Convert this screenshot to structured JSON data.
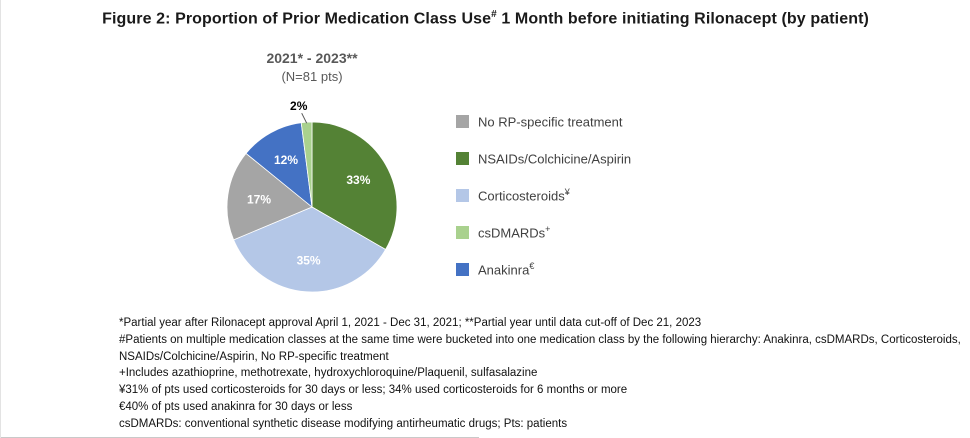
{
  "figure": {
    "title_pre": "Figure 2: Proportion of Prior Medication Class Use",
    "title_sup": "#",
    "title_post": " 1 Month before initiating Rilonacept (by patient)"
  },
  "chart_data": {
    "type": "pie",
    "title": "2021* - 2023**",
    "subtitle": "(N=81 pts)",
    "start_angle_deg": -90,
    "direction": "clockwise",
    "legend_position": "right",
    "series": [
      {
        "name": "NSAIDs/Colchicine/Aspirin",
        "value": 33,
        "label": "33%",
        "color": "#548235",
        "label_inside": true
      },
      {
        "name": "Corticosteroids",
        "value": 35,
        "label": "35%",
        "color": "#b4c7e7",
        "label_inside": true
      },
      {
        "name": "No RP-specific treatment",
        "value": 17,
        "label": "17%",
        "color": "#a5a5a5",
        "label_inside": true
      },
      {
        "name": "Anakinra",
        "value": 12,
        "label": "12%",
        "color": "#4472c4",
        "label_inside": true
      },
      {
        "name": "csDMARDs",
        "value": 2,
        "label": "2%",
        "color": "#a9d18e",
        "label_inside": false
      }
    ]
  },
  "legend": {
    "items": [
      {
        "label": "No RP-specific treatment",
        "sup": "",
        "color": "#a5a5a5"
      },
      {
        "label": "NSAIDs/Colchicine/Aspirin",
        "sup": "",
        "color": "#548235"
      },
      {
        "label": "Corticosteroids",
        "sup": "¥",
        "color": "#b4c7e7"
      },
      {
        "label": "csDMARDs",
        "sup": "+",
        "color": "#a9d18e"
      },
      {
        "label": "Anakinra",
        "sup": "€",
        "color": "#4472c4"
      }
    ]
  },
  "footnotes": {
    "lines": [
      "*Partial year after Rilonacept approval April 1, 2021  - Dec 31, 2021;  **Partial year until data cut-off of Dec 21, 2023",
      "#Patients on multiple medication classes at the same time were bucketed into one medication class by the following hierarchy: Anakinra, csDMARDs, Corticosteroids, NSAIDs/Colchicine/Aspirin, No RP-specific treatment",
      "+Includes azathioprine, methotrexate, hydroxychloroquine/Plaquenil, sulfasalazine",
      "¥31% of pts used corticosteroids for 30 days or less; 34% used corticosteroids for 6 months or more",
      "€40% of pts used anakinra for 30 days or less",
      "csDMARDs: conventional synthetic disease modifying antirheumatic drugs; Pts: patients"
    ]
  }
}
